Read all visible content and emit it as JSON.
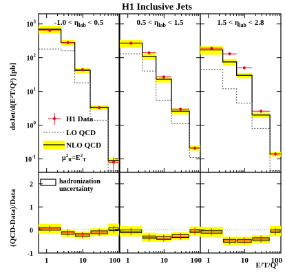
{
  "chart_data": {
    "type": "line",
    "title": "H1 Inclusive Jets",
    "ylabel_top": "dσJet/d(E²T/Q²) [pb]",
    "ylabel_bottom": "(QCD-Data)/Data",
    "xlabel": "E²T/Q²",
    "x_scale": "log",
    "xlim": [
      0.6,
      100
    ],
    "top_ylim": [
      0.04,
      2000
    ],
    "top_yscale": "log",
    "bottom_ylim": [
      -1,
      2.5
    ],
    "bottom_y_ticks": [
      "-1",
      "0",
      "1",
      "2"
    ],
    "x_ticks": [
      "1",
      "10",
      "100"
    ],
    "bin_edges": [
      0.6,
      2.5,
      6,
      16,
      50,
      100
    ],
    "panel_labels": [
      "-1.0 < ηlab < 0.5",
      "0.5 < ηlab < 1.5",
      "1.5 < ηlab < 2.8"
    ],
    "legend": {
      "data": "H1 Data",
      "lo": "LO QCD",
      "nlo": "NLO QCD",
      "scale": "μ²R=E²T",
      "hadr": "hadronization uncertainty"
    },
    "panels": [
      {
        "label": "-1.0 < ηlab < 0.5",
        "data": [
          650,
          280,
          44,
          3.3,
          0.08
        ],
        "data_err": [
          0.12,
          0.12,
          0.1,
          0.1,
          0.4
        ],
        "nlo": [
          700,
          280,
          42,
          3.4,
          0.09
        ],
        "nlo_band": [
          0.25,
          0.2,
          0.18,
          0.16,
          0.16
        ],
        "lo": [
          180,
          160,
          18,
          1.4,
          0.045
        ],
        "ratio": [
          0.05,
          -0.13,
          -0.22,
          -0.1,
          0.03
        ],
        "ratio_band": [
          0.22,
          0.17,
          0.15,
          0.17,
          0.25
        ]
      },
      {
        "label": "0.5 < ηlab < 1.5",
        "data": [
          270,
          140,
          27,
          3.0,
          0.21
        ],
        "data_err": [
          0.1,
          0.1,
          0.1,
          0.1,
          0.12
        ],
        "nlo": [
          270,
          110,
          23,
          2.6,
          0.21
        ],
        "nlo_band": [
          0.25,
          0.22,
          0.2,
          0.2,
          0.16
        ],
        "lo": [
          130,
          40,
          5.5,
          1.1,
          0.11
        ],
        "ratio": [
          -0.06,
          -0.32,
          -0.35,
          -0.27,
          -0.05
        ],
        "ratio_band": [
          0.22,
          0.2,
          0.17,
          0.17,
          0.2
        ]
      },
      {
        "label": "1.5 < ηlab < 2.8",
        "data": [
          190,
          130,
          50,
          2.6,
          0.14
        ],
        "data_err": [
          0.12,
          0.1,
          0.1,
          0.1,
          0.12
        ],
        "nlo": [
          170,
          75,
          30,
          2.0,
          0.14
        ],
        "nlo_band": [
          0.28,
          0.22,
          0.18,
          0.18,
          0.16
        ],
        "lo": [
          45,
          12,
          4.5,
          0.8,
          0.045
        ],
        "ratio": [
          -0.08,
          -0.47,
          -0.47,
          -0.4,
          -0.05
        ],
        "ratio_band": [
          0.22,
          0.18,
          0.18,
          0.18,
          0.22
        ]
      }
    ],
    "colors": {
      "data": "#e8001c",
      "band": "#ffff00",
      "line": "#000000",
      "lo": "#555555"
    }
  }
}
